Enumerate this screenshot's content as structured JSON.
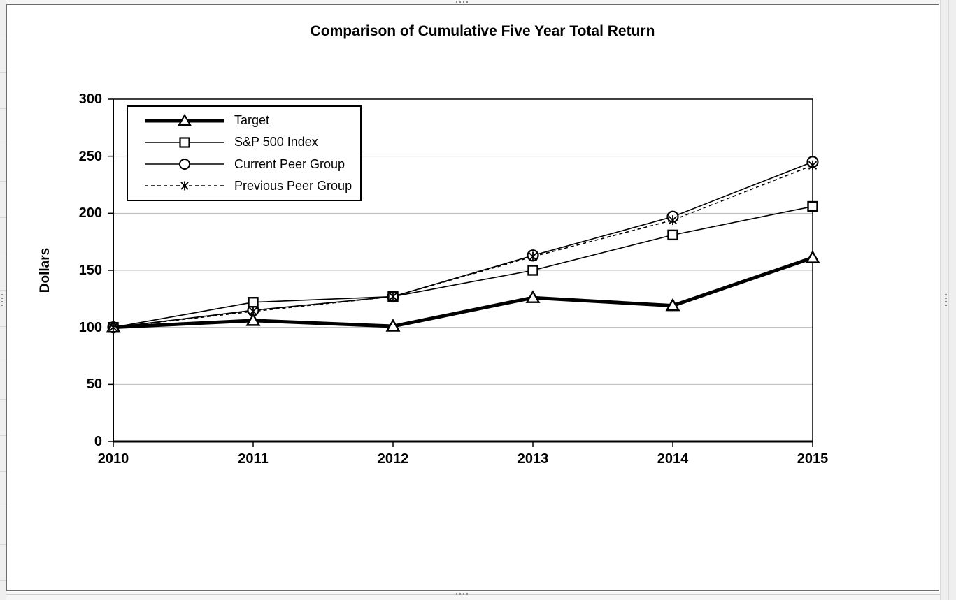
{
  "chart_data": {
    "type": "line",
    "title": "Comparison of Cumulative Five Year Total Return",
    "xlabel": "",
    "ylabel": "Dollars",
    "x": [
      "2010",
      "2011",
      "2012",
      "2013",
      "2014",
      "2015"
    ],
    "ylim": [
      0,
      300
    ],
    "yticks": [
      0,
      50,
      100,
      150,
      200,
      250,
      300
    ],
    "grid": true,
    "legend_position": "top-left-inside",
    "series": [
      {
        "name": "Target",
        "marker": "triangle",
        "line": "solid-thick",
        "values": [
          100,
          106,
          101,
          126,
          119,
          161
        ]
      },
      {
        "name": "S&P 500 Index",
        "marker": "square",
        "line": "solid-thin",
        "values": [
          100,
          122,
          127,
          150,
          181,
          206
        ]
      },
      {
        "name": "Current Peer Group",
        "marker": "circle",
        "line": "solid-thin",
        "values": [
          100,
          115,
          127,
          163,
          197,
          245
        ]
      },
      {
        "name": "Previous Peer Group",
        "marker": "star",
        "line": "dashed",
        "values": [
          100,
          114,
          127,
          162,
          194,
          242
        ]
      }
    ],
    "colors": {
      "series": "#000000",
      "gridline": "#b9b9b9",
      "background": "#ffffff"
    }
  },
  "window": {
    "selected_object": "chart",
    "handle_count": 4
  }
}
